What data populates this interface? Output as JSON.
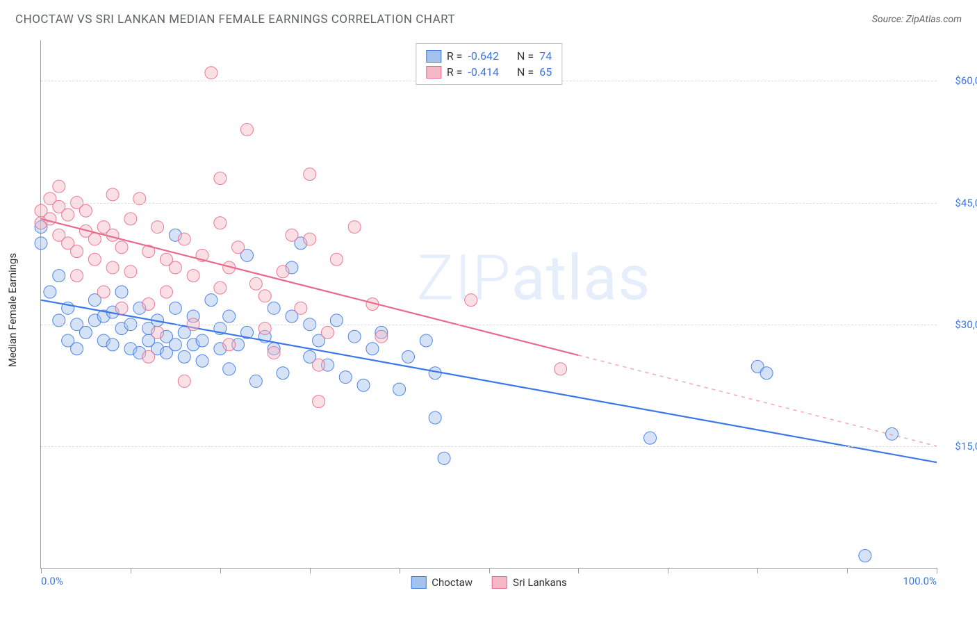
{
  "title": "CHOCTAW VS SRI LANKAN MEDIAN FEMALE EARNINGS CORRELATION CHART",
  "source_label": "Source: ZipAtlas.com",
  "y_axis_label": "Median Female Earnings",
  "watermark": "ZIPatlas",
  "chart": {
    "type": "scatter",
    "background_color": "#ffffff",
    "grid_color": "#dcdcdc",
    "axis_color": "#9e9e9e",
    "title_color": "#5f6368",
    "value_color": "#3b78e7",
    "x_range": [
      0,
      100
    ],
    "y_range": [
      0,
      65000
    ],
    "x_ticks": [
      0,
      10,
      20,
      30,
      40,
      50,
      60,
      70,
      80,
      90,
      100
    ],
    "x_tick_labels": {
      "0": "0.0%",
      "100": "100.0%"
    },
    "y_gridlines": [
      15000,
      30000,
      45000,
      60000
    ],
    "y_tick_labels": {
      "15000": "$15,000",
      "30000": "$30,000",
      "45000": "$45,000",
      "60000": "$60,000"
    },
    "marker_radius": 9,
    "marker_opacity": 0.45,
    "marker_stroke_opacity": 0.9,
    "trend_line_width": 2.2
  },
  "legend_stats": [
    {
      "r_label": "R =",
      "r_value": "-0.642",
      "n_label": "N =",
      "n_value": "74",
      "fill": "#a4c2ed",
      "stroke": "#3b78e7"
    },
    {
      "r_label": "R =",
      "r_value": "-0.414",
      "n_label": "N =",
      "n_value": "65",
      "fill": "#f4b7c5",
      "stroke": "#e86a8a"
    }
  ],
  "legend_series": [
    {
      "label": "Choctaw",
      "fill": "#a4c2ed",
      "stroke": "#3b78e7"
    },
    {
      "label": "Sri Lankans",
      "fill": "#f4b7c5",
      "stroke": "#e86a8a"
    }
  ],
  "series": [
    {
      "name": "Choctaw",
      "fill": "#a4c2ed",
      "stroke": "#3b78e7",
      "trend": {
        "x1": 0,
        "y1": 33000,
        "x2": 100,
        "y2": 13000,
        "dash_from_x": null
      },
      "points": [
        [
          0,
          40000
        ],
        [
          0,
          42000
        ],
        [
          1,
          34000
        ],
        [
          2,
          30500
        ],
        [
          2,
          36000
        ],
        [
          3,
          28000
        ],
        [
          3,
          32000
        ],
        [
          4,
          30000
        ],
        [
          4,
          27000
        ],
        [
          5,
          29000
        ],
        [
          6,
          30500
        ],
        [
          6,
          33000
        ],
        [
          7,
          28000
        ],
        [
          7,
          31000
        ],
        [
          8,
          31500
        ],
        [
          8,
          27500
        ],
        [
          9,
          29500
        ],
        [
          9,
          34000
        ],
        [
          10,
          27000
        ],
        [
          10,
          30000
        ],
        [
          11,
          26500
        ],
        [
          11,
          32000
        ],
        [
          12,
          28000
        ],
        [
          12,
          29500
        ],
        [
          13,
          30500
        ],
        [
          13,
          27000
        ],
        [
          14,
          28500
        ],
        [
          14,
          26500
        ],
        [
          15,
          27500
        ],
        [
          15,
          32000
        ],
        [
          15,
          41000
        ],
        [
          16,
          29000
        ],
        [
          16,
          26000
        ],
        [
          17,
          27500
        ],
        [
          17,
          31000
        ],
        [
          18,
          28000
        ],
        [
          18,
          25500
        ],
        [
          19,
          33000
        ],
        [
          20,
          29500
        ],
        [
          20,
          27000
        ],
        [
          21,
          31000
        ],
        [
          21,
          24500
        ],
        [
          22,
          27500
        ],
        [
          23,
          29000
        ],
        [
          23,
          38500
        ],
        [
          24,
          23000
        ],
        [
          25,
          28500
        ],
        [
          26,
          27000
        ],
        [
          26,
          32000
        ],
        [
          27,
          24000
        ],
        [
          28,
          31000
        ],
        [
          28,
          37000
        ],
        [
          29,
          40000
        ],
        [
          30,
          26000
        ],
        [
          30,
          30000
        ],
        [
          31,
          28000
        ],
        [
          32,
          25000
        ],
        [
          33,
          30500
        ],
        [
          34,
          23500
        ],
        [
          35,
          28500
        ],
        [
          36,
          22500
        ],
        [
          37,
          27000
        ],
        [
          38,
          29000
        ],
        [
          40,
          22000
        ],
        [
          41,
          26000
        ],
        [
          43,
          28000
        ],
        [
          44,
          24000
        ],
        [
          44,
          18500
        ],
        [
          45,
          13500
        ],
        [
          68,
          16000
        ],
        [
          80,
          24800
        ],
        [
          81,
          24000
        ],
        [
          92,
          1500
        ],
        [
          95,
          16500
        ]
      ]
    },
    {
      "name": "Sri Lankans",
      "fill": "#f4b7c5",
      "stroke": "#e86a8a",
      "trend": {
        "x1": 0,
        "y1": 43000,
        "x2": 100,
        "y2": 15000,
        "dash_from_x": 60
      },
      "points": [
        [
          0,
          44000
        ],
        [
          0,
          42500
        ],
        [
          1,
          45500
        ],
        [
          1,
          43000
        ],
        [
          2,
          44500
        ],
        [
          2,
          41000
        ],
        [
          2,
          47000
        ],
        [
          3,
          40000
        ],
        [
          3,
          43500
        ],
        [
          4,
          39000
        ],
        [
          4,
          45000
        ],
        [
          4,
          36000
        ],
        [
          5,
          41500
        ],
        [
          5,
          44000
        ],
        [
          6,
          38000
        ],
        [
          6,
          40500
        ],
        [
          7,
          42000
        ],
        [
          7,
          34000
        ],
        [
          8,
          41000
        ],
        [
          8,
          46000
        ],
        [
          8,
          37000
        ],
        [
          9,
          39500
        ],
        [
          9,
          32000
        ],
        [
          10,
          43000
        ],
        [
          10,
          36500
        ],
        [
          11,
          45500
        ],
        [
          12,
          39000
        ],
        [
          12,
          26000
        ],
        [
          12,
          32500
        ],
        [
          13,
          42000
        ],
        [
          13,
          29000
        ],
        [
          14,
          38000
        ],
        [
          14,
          34000
        ],
        [
          15,
          37000
        ],
        [
          16,
          40500
        ],
        [
          16,
          23000
        ],
        [
          17,
          36000
        ],
        [
          17,
          30000
        ],
        [
          18,
          38500
        ],
        [
          19,
          61000
        ],
        [
          20,
          34500
        ],
        [
          20,
          42500
        ],
        [
          20,
          48000
        ],
        [
          21,
          27500
        ],
        [
          21,
          37000
        ],
        [
          22,
          39500
        ],
        [
          23,
          54000
        ],
        [
          24,
          35000
        ],
        [
          25,
          33500
        ],
        [
          25,
          29500
        ],
        [
          26,
          26500
        ],
        [
          27,
          36500
        ],
        [
          28,
          41000
        ],
        [
          29,
          32000
        ],
        [
          30,
          48500
        ],
        [
          30,
          40500
        ],
        [
          31,
          25000
        ],
        [
          31,
          20500
        ],
        [
          32,
          29000
        ],
        [
          33,
          38000
        ],
        [
          35,
          42000
        ],
        [
          37,
          32500
        ],
        [
          38,
          28500
        ],
        [
          48,
          33000
        ],
        [
          58,
          24500
        ]
      ]
    }
  ]
}
